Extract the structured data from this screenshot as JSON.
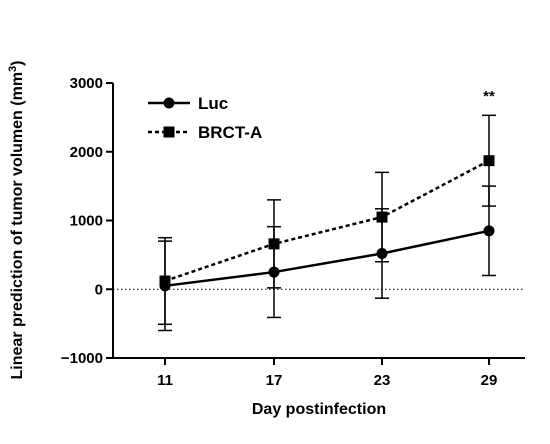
{
  "chart_data": {
    "type": "line",
    "xlabel": "Day postinfection",
    "ylabel": "Linear prediction of tumor volumen (mm",
    "ylabel_sup": "3",
    "ylabel_end": ")",
    "categories": [
      "11",
      "17",
      "23",
      "29"
    ],
    "ylim": [
      -1000,
      3000
    ],
    "yticks": [
      -1000,
      0,
      1000,
      2000,
      3000
    ],
    "ytick_labels": [
      "−1000",
      "0",
      "1000",
      "2000",
      "3000"
    ],
    "reference_line": {
      "y": 0,
      "style": "dotted"
    },
    "legend_position": "top-left",
    "annotation": {
      "text": "**",
      "category": "29"
    },
    "series": [
      {
        "name": "Luc",
        "marker": "circle",
        "line_style": "solid",
        "values": [
          50,
          250,
          520,
          850
        ],
        "error": [
          650,
          660,
          650,
          650
        ]
      },
      {
        "name": "BRCT-A",
        "marker": "square",
        "line_style": "dashed",
        "values": [
          120,
          660,
          1050,
          1870
        ],
        "error": [
          630,
          640,
          650,
          660
        ]
      }
    ]
  }
}
